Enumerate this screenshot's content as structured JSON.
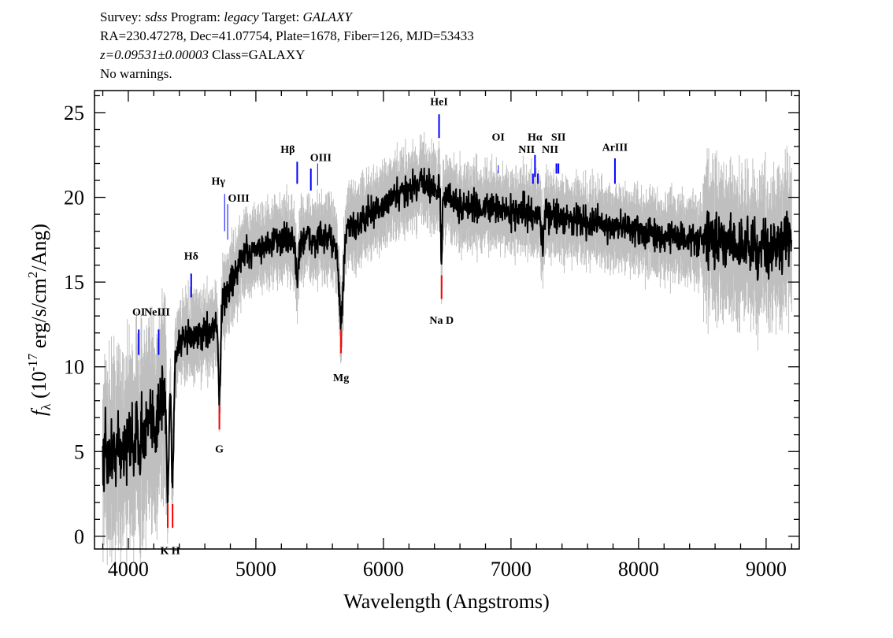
{
  "header": {
    "survey_label": "Survey:",
    "survey": "sdss",
    "program_label": "Program:",
    "program": "legacy",
    "target_label": "Target:",
    "target": "GALAXY",
    "line2": "RA=230.47278, Dec=41.07754, Plate=1678, Fiber=126, MJD=53433",
    "redshift": "z=0.09531±0.00003",
    "class": "Class=GALAXY",
    "warnings": "No warnings."
  },
  "chart_data": {
    "type": "line",
    "title": "",
    "xlabel": "Wavelength (Angstroms)",
    "ylabel": "f_λ (10^-17 erg/s/cm^2/Ang)",
    "xlim": [
      3735,
      9260
    ],
    "ylim": [
      -0.75,
      26.3
    ],
    "x_ticks": [
      4000,
      5000,
      6000,
      7000,
      8000,
      9000
    ],
    "y_ticks": [
      0,
      5,
      10,
      15,
      20,
      25
    ],
    "grid": false,
    "series": [
      {
        "role": "flux",
        "color": "#000000",
        "continuum_x": [
          3800,
          4000,
          4200,
          4280,
          4400,
          4600,
          4680,
          4800,
          4900,
          5000,
          5200,
          5400,
          5600,
          5800,
          6000,
          6200,
          6300,
          6400,
          6600,
          7000,
          7500,
          8000,
          8500,
          9000,
          9200
        ],
        "continuum_y": [
          4.5,
          5.5,
          6.5,
          8.5,
          11.5,
          12,
          12.5,
          15,
          16.5,
          17,
          17.5,
          17.5,
          17.5,
          18.5,
          19.5,
          20.5,
          21,
          20.5,
          19.5,
          19.2,
          18.7,
          18,
          17.5,
          17,
          17.5
        ]
      },
      {
        "role": "error-band",
        "color": "#bfbfbf"
      }
    ],
    "emission_lines": [
      {
        "label": "OI",
        "wavelength": 4082
      },
      {
        "label": "NeIII",
        "wavelength": 4238
      },
      {
        "label": "Hδ",
        "wavelength": 4493
      },
      {
        "label": "Hγ",
        "wavelength": 4755
      },
      {
        "label": "OIII",
        "wavelength": 4779
      },
      {
        "label": "Hβ",
        "wavelength": 5324
      },
      {
        "label": "",
        "wavelength": 5431
      },
      {
        "label": "OIII",
        "wavelength": 5484
      },
      {
        "label": "HeI",
        "wavelength": 6436
      },
      {
        "label": "OI",
        "wavelength": 6900
      },
      {
        "label": "NII",
        "wavelength": 7172
      },
      {
        "label": "Hα",
        "wavelength": 7188
      },
      {
        "label": "",
        "wavelength": 7211
      },
      {
        "label": "NII",
        "wavelength": 7356
      },
      {
        "label": "SII",
        "wavelength": 7372
      },
      {
        "label": "ArIII",
        "wavelength": 7815
      }
    ],
    "absorption_lines": [
      {
        "label": "K",
        "wavelength": 4309
      },
      {
        "label": "H",
        "wavelength": 4347
      },
      {
        "label": "G",
        "wavelength": 4714
      },
      {
        "label": "Mg",
        "wavelength": 5668
      },
      {
        "label": "Na D",
        "wavelength": 6456
      }
    ],
    "emission_color": "#0000ff",
    "absorption_color": "#ff0000"
  }
}
